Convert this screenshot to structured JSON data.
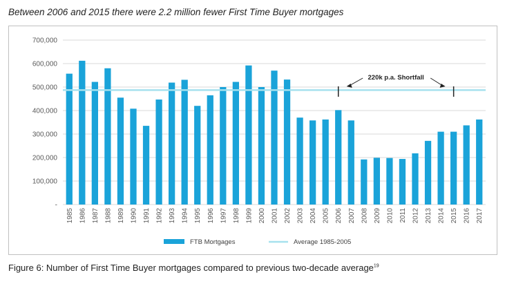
{
  "header": {
    "title": "Between 2006 and 2015 there were 2.2 million fewer First Time Buyer mortgages"
  },
  "footer": {
    "caption": "Figure 6: Number of First Time Buyer mortgages compared to previous two-decade average",
    "footnote": "19"
  },
  "chart_data": {
    "type": "bar",
    "categories": [
      "1985",
      "1986",
      "1987",
      "1988",
      "1989",
      "1990",
      "1991",
      "1992",
      "1993",
      "1994",
      "1995",
      "1996",
      "1997",
      "1998",
      "1999",
      "2000",
      "2001",
      "2002",
      "2003",
      "2004",
      "2005",
      "2006",
      "2007",
      "2008",
      "2009",
      "2010",
      "2011",
      "2012",
      "2013",
      "2014",
      "2015",
      "2016",
      "2017"
    ],
    "series": [
      {
        "name": "FTB Mortgages",
        "values": [
          557000,
          612000,
          522000,
          580000,
          455000,
          408000,
          335000,
          447000,
          519000,
          531000,
          420000,
          465000,
          500000,
          522000,
          592000,
          500000,
          570000,
          532000,
          370000,
          358000,
          362000,
          402000,
          358000,
          192000,
          199000,
          198000,
          194000,
          218000,
          271000,
          310000,
          310000,
          337000,
          362000
        ],
        "color": "#1aa3d9"
      }
    ],
    "reference_line": {
      "name": "Average 1985-2005",
      "value": 487000,
      "color": "#a6e1ee"
    },
    "annotation": {
      "label": "220k p.a. Shortfall",
      "from": "2006",
      "to": "2015"
    },
    "ylim": [
      0,
      700000
    ],
    "y_ticks": [
      0,
      100000,
      200000,
      300000,
      400000,
      500000,
      600000,
      700000
    ],
    "y_tick_labels": [
      "-",
      "100,000",
      "200,000",
      "300,000",
      "400,000",
      "500,000",
      "600,000",
      "700,000"
    ],
    "xlabel": "",
    "ylabel": "",
    "grid": true,
    "legend_position": "bottom"
  }
}
